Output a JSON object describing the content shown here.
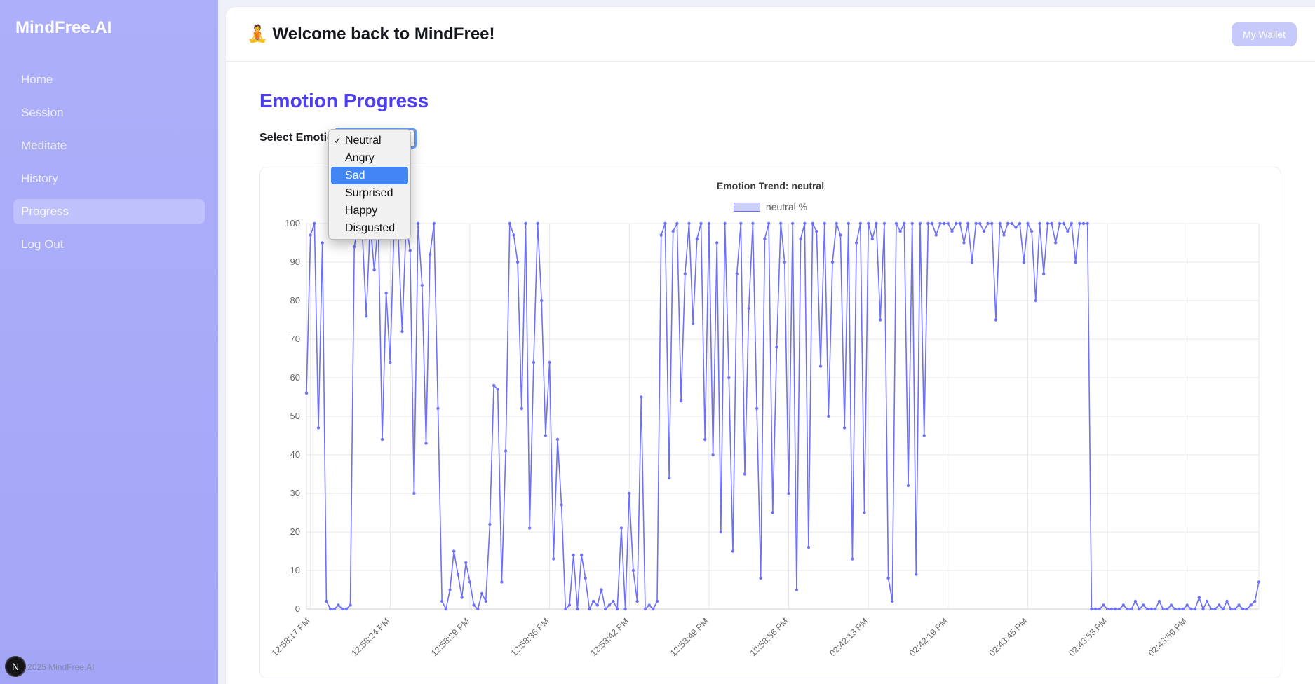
{
  "colors": {
    "sidebar_bg": "#a6a9f8",
    "sidebar_active": "#bfc1fc",
    "accent_indigo": "#4d3ff0",
    "wallet_button_bg": "#c7c9fa",
    "dropdown_highlight": "#4285f4",
    "chart_line": "#6e71f8",
    "legend_fill": "#cdd0fa"
  },
  "sidebar": {
    "logo": "MindFree.AI",
    "items": [
      {
        "label": "Home"
      },
      {
        "label": "Session"
      },
      {
        "label": "Meditate"
      },
      {
        "label": "History"
      },
      {
        "label": "Progress",
        "active": true
      },
      {
        "label": "Log Out"
      }
    ],
    "footer": {
      "copyright": "© 2025 MindFree.AI",
      "avatar_letter": "N"
    }
  },
  "header": {
    "title": "🧘 Welcome back to MindFree!",
    "wallet_button": "My Wallet"
  },
  "main": {
    "section_title": "Emotion Progress",
    "select_label": "Select Emotion:",
    "dropdown": {
      "selected": "Neutral",
      "check_glyph": "✓",
      "options": [
        {
          "label": "Neutral",
          "checked": true
        },
        {
          "label": "Angry"
        },
        {
          "label": "Sad",
          "highlighted": true
        },
        {
          "label": "Surprised"
        },
        {
          "label": "Happy"
        },
        {
          "label": "Disgusted"
        }
      ]
    }
  },
  "chart_data": {
    "type": "line",
    "title": "Emotion Trend: neutral",
    "legend": "neutral %",
    "legend_position": "top",
    "grid": true,
    "line_color": "#6e71f8",
    "point_color": "#6e71f8",
    "legend_fill": "#cdd0fa",
    "ylabel": "",
    "xlabel": "",
    "ylim": [
      0,
      100
    ],
    "y_ticks": [
      0,
      10,
      20,
      30,
      40,
      50,
      60,
      70,
      80,
      90,
      100
    ],
    "x_tick_indices": [
      1,
      21,
      41,
      61,
      81,
      101,
      121,
      141,
      161,
      181,
      201,
      221
    ],
    "x_tick_labels": [
      "12:58:17 PM",
      "12:58:24 PM",
      "12:58:29 PM",
      "12:58:36 PM",
      "12:58:42 PM",
      "12:58:49 PM",
      "12:58:56 PM",
      "02:42:13 PM",
      "02:42:19 PM",
      "02:43:45 PM",
      "02:43:53 PM",
      "02:43:59 PM"
    ],
    "values": [
      56,
      97,
      100,
      47,
      95,
      2,
      0,
      0,
      1,
      0,
      0,
      1,
      94,
      100,
      98,
      76,
      100,
      88,
      100,
      44,
      82,
      64,
      100,
      97,
      72,
      100,
      93,
      30,
      100,
      84,
      43,
      92,
      100,
      52,
      2,
      0,
      5,
      15,
      9,
      3,
      12,
      7,
      1,
      0,
      4,
      2,
      22,
      58,
      57,
      7,
      41,
      100,
      97,
      90,
      52,
      100,
      21,
      64,
      100,
      80,
      45,
      64,
      13,
      44,
      27,
      0,
      1,
      14,
      0,
      14,
      8,
      0,
      2,
      1,
      5,
      0,
      1,
      2,
      0,
      21,
      0,
      30,
      10,
      2,
      55,
      0,
      1,
      0,
      2,
      97,
      100,
      34,
      98,
      100,
      54,
      87,
      100,
      74,
      96,
      100,
      44,
      100,
      40,
      95,
      20,
      100,
      60,
      15,
      87,
      100,
      35,
      78,
      100,
      52,
      8,
      96,
      100,
      25,
      68,
      100,
      90,
      30,
      100,
      5,
      96,
      100,
      16,
      100,
      98,
      63,
      100,
      50,
      90,
      100,
      97,
      47,
      100,
      13,
      95,
      100,
      25,
      100,
      96,
      100,
      75,
      100,
      8,
      2,
      100,
      98,
      100,
      32,
      100,
      9,
      100,
      45,
      100,
      100,
      97,
      100,
      100,
      100,
      98,
      100,
      100,
      95,
      100,
      90,
      100,
      100,
      98,
      100,
      100,
      75,
      100,
      97,
      100,
      100,
      99,
      100,
      90,
      100,
      98,
      80,
      100,
      87,
      100,
      100,
      95,
      100,
      100,
      98,
      100,
      90,
      100,
      100,
      100,
      0,
      0,
      0,
      1,
      0,
      0,
      0,
      0,
      1,
      0,
      0,
      2,
      0,
      1,
      0,
      0,
      0,
      2,
      0,
      0,
      1,
      0,
      0,
      0,
      1,
      0,
      0,
      3,
      0,
      2,
      0,
      0,
      1,
      0,
      2,
      0,
      0,
      1,
      0,
      0,
      1,
      2,
      7
    ]
  }
}
